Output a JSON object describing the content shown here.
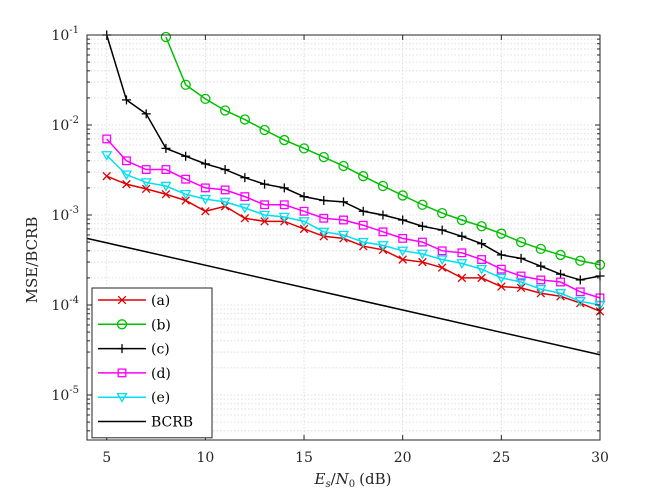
{
  "chart_data": {
    "type": "line",
    "title": "",
    "xlabel": "E_s/N_0 (dB)",
    "xlabel_parts": {
      "E": "E",
      "s": "s",
      "slash": "/",
      "N": "N",
      "zero": "0",
      "unit": "(dB)"
    },
    "ylabel": "MSE/BCRB",
    "xlim": [
      4,
      30
    ],
    "ylim_log10": [
      -5.5,
      -1
    ],
    "yscale": "log",
    "grid": true,
    "legend_position": "bottom-left",
    "x_ticks": [
      5,
      10,
      15,
      20,
      25,
      30
    ],
    "x_tick_labels": [
      "5",
      "10",
      "15",
      "20",
      "25",
      "30"
    ],
    "y_ticks": [
      {
        "base": "10",
        "exp": "-5"
      },
      {
        "base": "10",
        "exp": "-4"
      },
      {
        "base": "10",
        "exp": "-3"
      },
      {
        "base": "10",
        "exp": "-2"
      },
      {
        "base": "10",
        "exp": "-1"
      }
    ],
    "x": [
      5,
      6,
      7,
      8,
      9,
      10,
      11,
      12,
      13,
      14,
      15,
      16,
      17,
      18,
      19,
      20,
      21,
      22,
      23,
      24,
      25,
      26,
      27,
      28,
      29,
      30
    ],
    "series": [
      {
        "name": "(a)",
        "color": "#e00000",
        "marker": "x",
        "values": [
          0.0027,
          0.0022,
          0.00195,
          0.0017,
          0.00145,
          0.0011,
          0.00125,
          0.00092,
          0.00085,
          0.00085,
          0.0007,
          0.00058,
          0.00055,
          0.00045,
          0.00041,
          0.00032,
          0.0003,
          0.00026,
          0.0002,
          0.0002,
          0.00016,
          0.000155,
          0.000135,
          0.000125,
          0.000105,
          8.5e-05
        ]
      },
      {
        "name": "(b)",
        "color": "#00c000",
        "marker": "circle",
        "values": [
          null,
          null,
          null,
          0.095,
          0.028,
          0.0195,
          0.0145,
          0.0115,
          0.0088,
          0.0068,
          0.0055,
          0.0044,
          0.0035,
          0.0027,
          0.0021,
          0.00165,
          0.0013,
          0.00105,
          0.00088,
          0.00075,
          0.00062,
          0.0005,
          0.00042,
          0.00036,
          0.00031,
          0.00028
        ]
      },
      {
        "name": "(c)",
        "color": "#000000",
        "marker": "plus",
        "values": [
          0.1,
          0.019,
          0.0133,
          0.0055,
          0.0045,
          0.0037,
          0.0032,
          0.0026,
          0.0022,
          0.002,
          0.0016,
          0.00145,
          0.0014,
          0.0011,
          0.001,
          0.00088,
          0.00075,
          0.00068,
          0.00058,
          0.00048,
          0.00036,
          0.00033,
          0.00027,
          0.00022,
          0.00019,
          0.00021
        ]
      },
      {
        "name": "(d)",
        "color": "#ff00ff",
        "marker": "square",
        "values": [
          0.007,
          0.004,
          0.0032,
          0.0032,
          0.0025,
          0.002,
          0.0019,
          0.0016,
          0.0013,
          0.0013,
          0.0011,
          0.00092,
          0.00088,
          0.00077,
          0.00065,
          0.00055,
          0.0005,
          0.0004,
          0.00038,
          0.00032,
          0.00025,
          0.00021,
          0.00019,
          0.00018,
          0.00014,
          0.00012
        ]
      },
      {
        "name": "(e)",
        "color": "#00e0f0",
        "marker": "triangle-down",
        "values": [
          0.0046,
          0.0028,
          0.0023,
          0.0021,
          0.0017,
          0.0015,
          0.0014,
          0.0012,
          0.001,
          0.00095,
          0.00085,
          0.00065,
          0.0006,
          0.0005,
          0.00046,
          0.0004,
          0.00037,
          0.00032,
          0.00029,
          0.00025,
          0.0002,
          0.00018,
          0.00015,
          0.000135,
          0.00011,
          0.0001
        ]
      },
      {
        "name": "BCRB",
        "color": "#000000",
        "marker": "none",
        "x_range": [
          4,
          30
        ],
        "values_at_range": [
          0.00055,
          2.8e-05
        ]
      }
    ]
  }
}
